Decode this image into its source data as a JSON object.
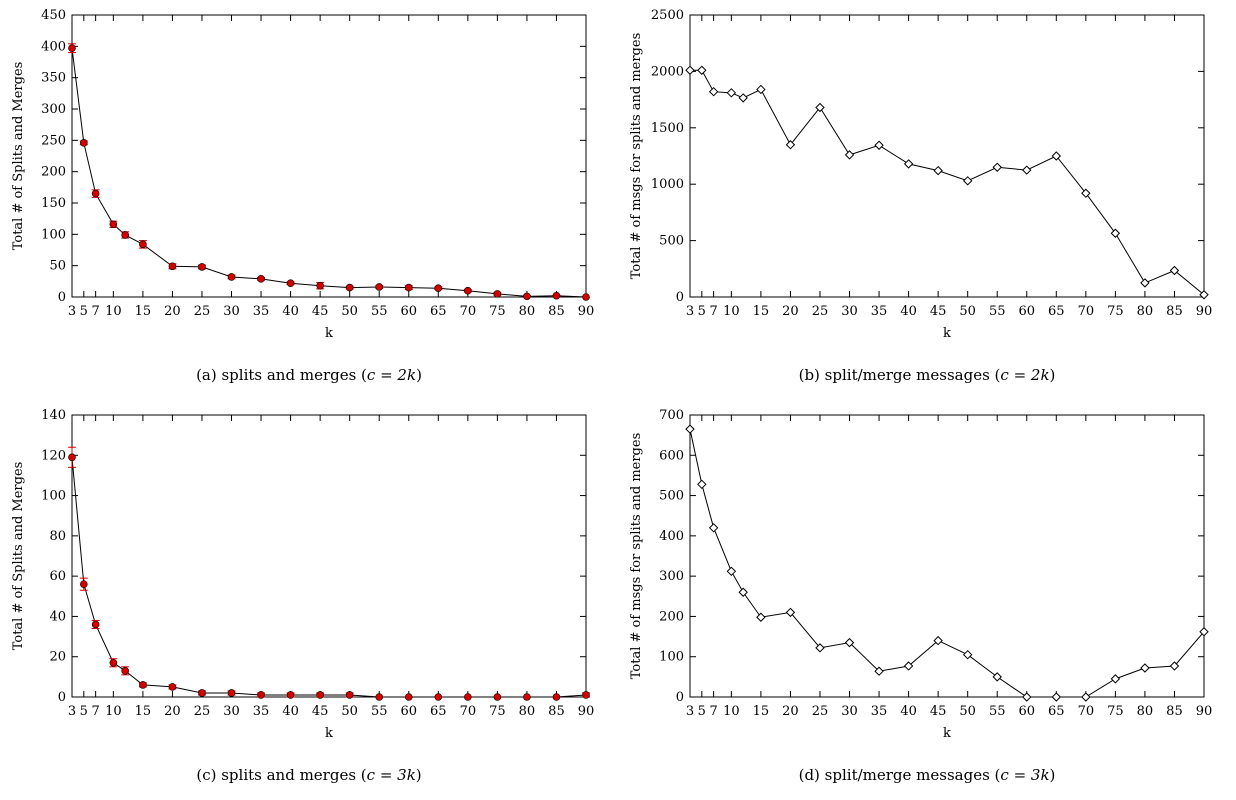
{
  "chart_data": [
    {
      "type": "line",
      "marker": "circle-with-errorbars",
      "marker_color": "#d40000",
      "line_color": "#000000",
      "xlabel": "k",
      "ylabel": "Total # of Splits and Merges",
      "caption_prefix": "(a) splits and merges (",
      "caption_math": "c = 2k",
      "caption_suffix": ")",
      "ylim": [
        0,
        450
      ],
      "yticks": [
        0,
        50,
        100,
        150,
        200,
        250,
        300,
        350,
        400,
        450
      ],
      "xticks": [
        3,
        5,
        7,
        10,
        15,
        20,
        25,
        30,
        35,
        40,
        45,
        50,
        55,
        60,
        65,
        70,
        75,
        80,
        85,
        90
      ],
      "xlim": [
        3,
        90
      ],
      "grid": false,
      "x": [
        3,
        5,
        7,
        10,
        12,
        15,
        20,
        25,
        30,
        35,
        40,
        45,
        50,
        55,
        60,
        65,
        70,
        75,
        80,
        85,
        90
      ],
      "y": [
        397,
        246,
        165,
        116,
        99,
        84,
        49,
        48,
        32,
        29,
        22,
        18,
        15,
        16,
        15,
        14,
        10,
        5,
        1,
        2,
        0
      ],
      "err": [
        7,
        3,
        6,
        5,
        5,
        6,
        4,
        3,
        3,
        2,
        2,
        5,
        2,
        2,
        3,
        2,
        2,
        2,
        1,
        1,
        0
      ]
    },
    {
      "type": "line",
      "marker": "diamond",
      "marker_color": "#000000",
      "line_color": "#000000",
      "xlabel": "k",
      "ylabel": "Total # of msgs for splits and merges",
      "caption_prefix": "(b) split/merge messages (",
      "caption_math": "c = 2k",
      "caption_suffix": ")",
      "ylim": [
        0,
        2500
      ],
      "yticks": [
        0,
        500,
        1000,
        1500,
        2000,
        2500
      ],
      "xticks": [
        3,
        5,
        7,
        10,
        15,
        20,
        25,
        30,
        35,
        40,
        45,
        50,
        55,
        60,
        65,
        70,
        75,
        80,
        85,
        90
      ],
      "xlim": [
        3,
        90
      ],
      "grid": false,
      "x": [
        3,
        5,
        7,
        10,
        12,
        15,
        20,
        25,
        30,
        35,
        40,
        45,
        50,
        55,
        60,
        65,
        70,
        75,
        80,
        85,
        90
      ],
      "y": [
        2010,
        2010,
        1820,
        1810,
        1765,
        1840,
        1350,
        1680,
        1260,
        1345,
        1180,
        1120,
        1030,
        1150,
        1125,
        1250,
        920,
        565,
        125,
        235,
        20
      ],
      "err": []
    },
    {
      "type": "line",
      "marker": "circle-with-errorbars",
      "marker_color": "#d40000",
      "line_color": "#000000",
      "xlabel": "k",
      "ylabel": "Total # of Splits and Merges",
      "caption_prefix": "(c) splits and merges (",
      "caption_math": "c = 3k",
      "caption_suffix": ")",
      "ylim": [
        0,
        140
      ],
      "yticks": [
        0,
        20,
        40,
        60,
        80,
        100,
        120,
        140
      ],
      "xticks": [
        3,
        5,
        7,
        10,
        15,
        20,
        25,
        30,
        35,
        40,
        45,
        50,
        55,
        60,
        65,
        70,
        75,
        80,
        85,
        90
      ],
      "xlim": [
        3,
        90
      ],
      "grid": false,
      "x": [
        3,
        5,
        7,
        10,
        12,
        15,
        20,
        25,
        30,
        35,
        40,
        45,
        50,
        55,
        60,
        65,
        70,
        75,
        80,
        85,
        90
      ],
      "y": [
        119,
        56,
        36,
        17,
        13,
        6,
        5,
        2,
        2,
        1,
        1,
        1,
        1,
        0,
        0,
        0,
        0,
        0,
        0,
        0,
        1
      ],
      "err": [
        5,
        3,
        2,
        2,
        2,
        1,
        1,
        1,
        1,
        1,
        1,
        1,
        1,
        0,
        0,
        0,
        0,
        0,
        0,
        0,
        1
      ]
    },
    {
      "type": "line",
      "marker": "diamond",
      "marker_color": "#000000",
      "line_color": "#000000",
      "xlabel": "k",
      "ylabel": "Total # of msgs for splits and merges",
      "caption_prefix": "(d) split/merge messages (",
      "caption_math": "c = 3k",
      "caption_suffix": ")",
      "ylim": [
        0,
        700
      ],
      "yticks": [
        0,
        100,
        200,
        300,
        400,
        500,
        600,
        700
      ],
      "xticks": [
        3,
        5,
        7,
        10,
        15,
        20,
        25,
        30,
        35,
        40,
        45,
        50,
        55,
        60,
        65,
        70,
        75,
        80,
        85,
        90
      ],
      "xlim": [
        3,
        90
      ],
      "grid": false,
      "x": [
        3,
        5,
        7,
        10,
        12,
        15,
        20,
        25,
        30,
        35,
        40,
        45,
        50,
        55,
        60,
        65,
        70,
        75,
        80,
        85,
        90
      ],
      "y": [
        665,
        528,
        420,
        312,
        260,
        198,
        210,
        122,
        135,
        64,
        77,
        140,
        105,
        50,
        0,
        0,
        0,
        45,
        72,
        77,
        162
      ],
      "err": []
    }
  ]
}
